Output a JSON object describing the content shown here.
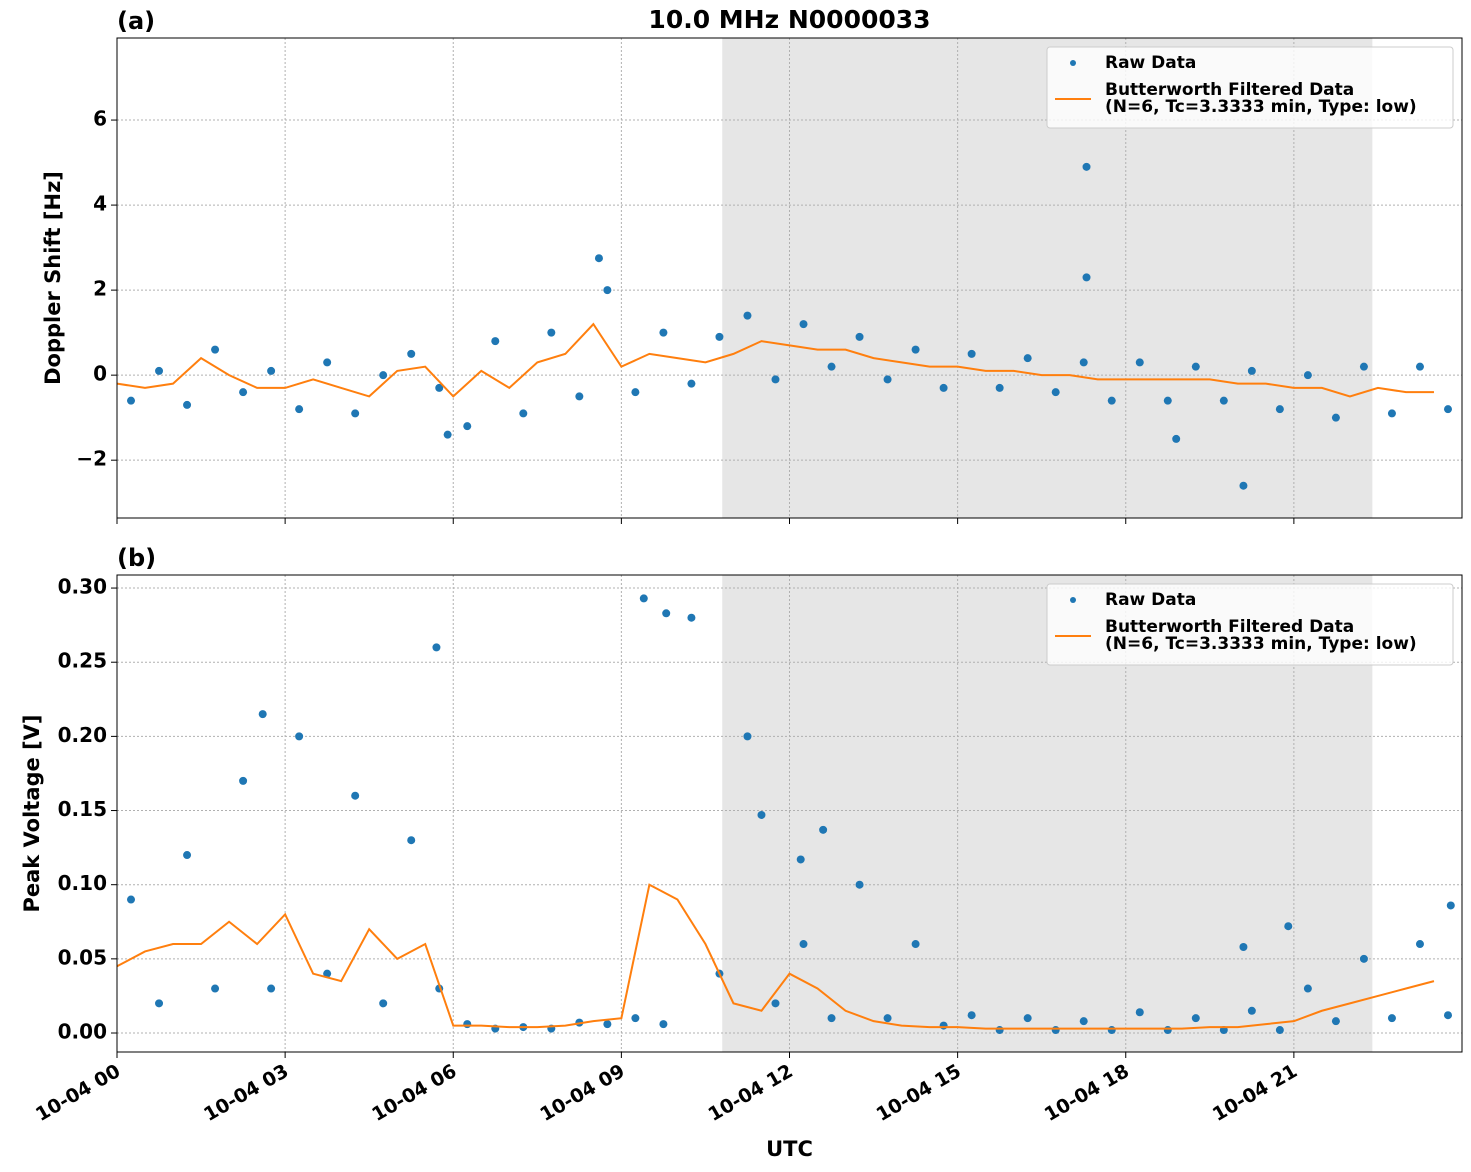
{
  "chart_data": [
    {
      "type": "scatter-line",
      "title": "10.0 MHz N0000033",
      "panel_label": "(a)",
      "ylabel": "Doppler Shift [Hz]",
      "xlim": [
        0,
        24
      ],
      "xticks": [
        0,
        3,
        6,
        9,
        12,
        15,
        18,
        21
      ],
      "ylim": [
        -3.36,
        7.93
      ],
      "yticks": [
        {
          "value": -2,
          "label": "−2"
        },
        0,
        2,
        4,
        6
      ],
      "grid": true,
      "legend": "upper right",
      "shaded_span": [
        10.8,
        22.4
      ],
      "shade_color": "#e6e6e6",
      "series": [
        {
          "name": "Raw Data",
          "kind": "scatter",
          "color": "#1f77b4",
          "x": [
            0.25,
            0.75,
            1.25,
            1.75,
            2.25,
            2.75,
            3.25,
            3.75,
            4.25,
            4.75,
            5.25,
            5.75,
            6.25,
            6.75,
            7.25,
            7.75,
            8.25,
            8.75,
            9.25,
            9.75,
            10.25,
            10.75,
            11.25,
            11.75,
            12.25,
            12.75,
            13.25,
            13.75,
            14.25,
            14.75,
            15.25,
            15.75,
            16.25,
            16.75,
            17.25,
            17.75,
            18.25,
            18.75,
            19.25,
            19.75,
            20.25,
            20.75,
            21.25,
            21.75,
            22.25,
            22.75,
            23.25,
            23.75,
            8.6,
            17.3,
            17.3,
            18.9,
            20.1,
            5.9
          ],
          "values": [
            -0.6,
            0.1,
            -0.7,
            0.6,
            -0.4,
            0.1,
            -0.8,
            0.3,
            -0.9,
            0.0,
            0.5,
            -0.3,
            -1.2,
            0.8,
            -0.9,
            1.0,
            -0.5,
            2.0,
            -0.4,
            1.0,
            -0.2,
            0.9,
            1.4,
            -0.1,
            1.2,
            0.2,
            0.9,
            -0.1,
            0.6,
            -0.3,
            0.5,
            -0.3,
            0.4,
            -0.4,
            0.3,
            -0.6,
            0.3,
            -0.6,
            0.2,
            -0.6,
            0.1,
            -0.8,
            0.0,
            -1.0,
            0.2,
            -0.9,
            0.2,
            -0.8,
            2.75,
            4.9,
            2.3,
            -1.5,
            -2.6,
            -1.4
          ]
        },
        {
          "name": "Butterworth Filtered Data\n(N=6, Tc=3.3333 min, Type: low)",
          "kind": "line",
          "color": "#ff7f0e",
          "x": [
            0,
            0.5,
            1,
            1.5,
            2,
            2.5,
            3,
            3.5,
            4,
            4.5,
            5,
            5.5,
            6,
            6.5,
            7,
            7.5,
            8,
            8.5,
            9,
            9.5,
            10,
            10.5,
            11,
            11.5,
            12,
            12.5,
            13,
            13.5,
            14,
            14.5,
            15,
            15.5,
            16,
            16.5,
            17,
            17.5,
            18,
            18.5,
            19,
            19.5,
            20,
            20.5,
            21,
            21.5,
            22,
            22.5,
            23,
            23.5
          ],
          "values": [
            -0.2,
            -0.3,
            -0.2,
            0.4,
            0.0,
            -0.3,
            -0.3,
            -0.1,
            -0.3,
            -0.5,
            0.1,
            0.2,
            -0.5,
            0.1,
            -0.3,
            0.3,
            0.5,
            1.2,
            0.2,
            0.5,
            0.4,
            0.3,
            0.5,
            0.8,
            0.7,
            0.6,
            0.6,
            0.4,
            0.3,
            0.2,
            0.2,
            0.1,
            0.1,
            0.0,
            0.0,
            -0.1,
            -0.1,
            -0.1,
            -0.1,
            -0.1,
            -0.2,
            -0.2,
            -0.3,
            -0.3,
            -0.5,
            -0.3,
            -0.4,
            -0.4
          ]
        }
      ]
    },
    {
      "type": "scatter-line",
      "panel_label": "(b)",
      "ylabel": "Peak Voltage [V]",
      "xlabel": "UTC",
      "xlim": [
        0,
        24
      ],
      "xticks": [
        {
          "value": 0,
          "label": "10-04 00"
        },
        {
          "value": 3,
          "label": "10-04 03"
        },
        {
          "value": 6,
          "label": "10-04 06"
        },
        {
          "value": 9,
          "label": "10-04 09"
        },
        {
          "value": 12,
          "label": "10-04 12"
        },
        {
          "value": 15,
          "label": "10-04 15"
        },
        {
          "value": 18,
          "label": "10-04 18"
        },
        {
          "value": 21,
          "label": "10-04 21"
        }
      ],
      "ylim": [
        -0.0128,
        0.3088
      ],
      "yticks": [
        {
          "value": 0,
          "label": "0.00"
        },
        0.05,
        {
          "value": 0.1,
          "label": "0.10"
        },
        0.15,
        {
          "value": 0.2,
          "label": "0.20"
        },
        0.25,
        {
          "value": 0.3,
          "label": "0.30"
        }
      ],
      "grid": true,
      "legend": "upper right",
      "shaded_span": [
        10.8,
        22.4
      ],
      "shade_color": "#e6e6e6",
      "series": [
        {
          "name": "Raw Data",
          "kind": "scatter",
          "color": "#1f77b4",
          "x": [
            0.25,
            0.75,
            1.25,
            1.75,
            2.25,
            2.75,
            3.25,
            3.75,
            4.25,
            4.75,
            5.25,
            5.75,
            6.25,
            6.75,
            7.25,
            7.75,
            8.25,
            8.75,
            9.25,
            9.75,
            10.25,
            10.75,
            11.25,
            11.75,
            12.25,
            12.75,
            13.25,
            13.75,
            14.25,
            14.75,
            15.25,
            15.75,
            16.25,
            16.75,
            17.25,
            17.75,
            18.25,
            18.75,
            19.25,
            19.75,
            20.25,
            20.75,
            21.25,
            21.75,
            22.25,
            22.75,
            23.25,
            23.75,
            2.6,
            5.7,
            9.4,
            9.8,
            11.5,
            12.2,
            12.6,
            20.1,
            20.9,
            23.8
          ],
          "values": [
            0.09,
            0.02,
            0.12,
            0.03,
            0.17,
            0.03,
            0.2,
            0.04,
            0.16,
            0.02,
            0.13,
            0.03,
            0.006,
            0.003,
            0.004,
            0.003,
            0.007,
            0.006,
            0.01,
            0.006,
            0.28,
            0.04,
            0.2,
            0.02,
            0.06,
            0.01,
            0.1,
            0.01,
            0.06,
            0.005,
            0.012,
            0.002,
            0.01,
            0.002,
            0.008,
            0.002,
            0.014,
            0.002,
            0.01,
            0.002,
            0.015,
            0.002,
            0.03,
            0.008,
            0.05,
            0.01,
            0.06,
            0.012,
            0.215,
            0.26,
            0.293,
            0.283,
            0.147,
            0.117,
            0.137,
            0.058,
            0.072,
            0.086
          ]
        },
        {
          "name": "Butterworth Filtered Data\n(N=6, Tc=3.3333 min, Type: low)",
          "kind": "line",
          "color": "#ff7f0e",
          "x": [
            0,
            0.5,
            1,
            1.5,
            2,
            2.5,
            3,
            3.5,
            4,
            4.5,
            5,
            5.5,
            6,
            6.5,
            7,
            7.5,
            8,
            8.5,
            9,
            9.5,
            10,
            10.5,
            11,
            11.5,
            12,
            12.5,
            13,
            13.5,
            14,
            14.5,
            15,
            15.5,
            16,
            16.5,
            17,
            17.5,
            18,
            18.5,
            19,
            19.5,
            20,
            20.5,
            21,
            21.5,
            22,
            22.5,
            23,
            23.5
          ],
          "values": [
            0.045,
            0.055,
            0.06,
            0.06,
            0.075,
            0.06,
            0.08,
            0.04,
            0.035,
            0.07,
            0.05,
            0.06,
            0.005,
            0.005,
            0.004,
            0.004,
            0.005,
            0.008,
            0.01,
            0.1,
            0.09,
            0.06,
            0.02,
            0.015,
            0.04,
            0.03,
            0.015,
            0.008,
            0.005,
            0.004,
            0.004,
            0.003,
            0.003,
            0.003,
            0.003,
            0.003,
            0.003,
            0.003,
            0.003,
            0.004,
            0.004,
            0.006,
            0.008,
            0.015,
            0.02,
            0.025,
            0.03,
            0.035
          ]
        }
      ]
    }
  ]
}
